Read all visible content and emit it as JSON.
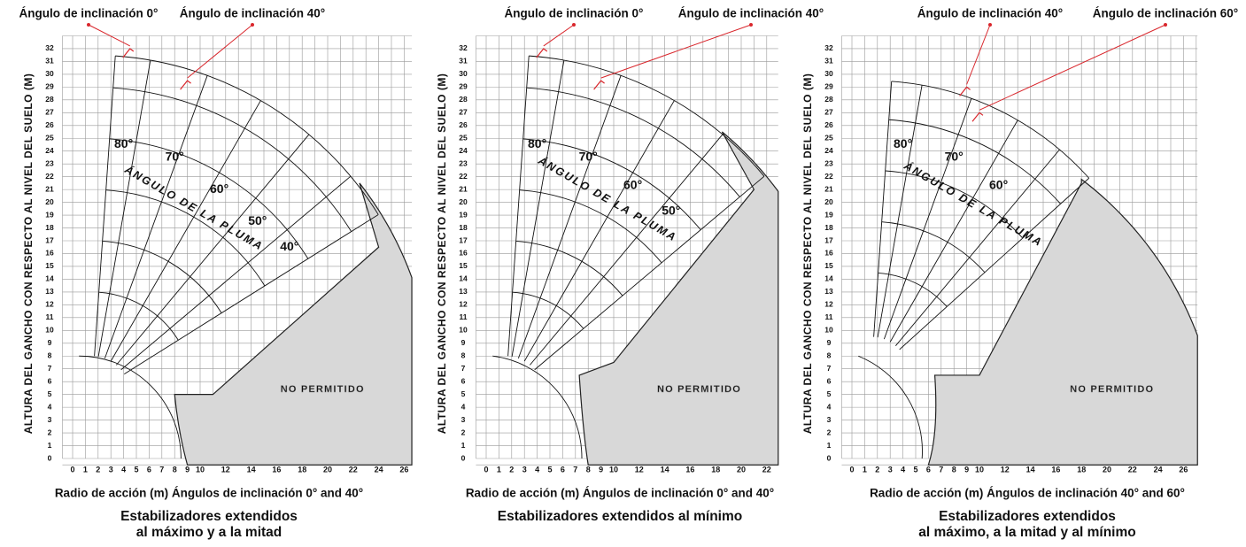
{
  "panels": [
    {
      "top_labels": [
        "Ángulo de inclinación 0°",
        "Ángulo de inclinación 40°"
      ],
      "y_axis_title": "ALTURA DEL GANCHO CON RESPECTO AL NIVEL DEL SUELO (M)",
      "y_ticks": [
        0,
        1,
        2,
        3,
        4,
        5,
        6,
        7,
        8,
        9,
        10,
        11,
        12,
        13,
        14,
        15,
        16,
        17,
        18,
        19,
        20,
        21,
        22,
        23,
        24,
        25,
        26,
        27,
        28,
        29,
        30,
        31,
        32
      ],
      "x_ticks": [
        0,
        1,
        2,
        3,
        4,
        5,
        6,
        7,
        8,
        9,
        10,
        12,
        14,
        16,
        18,
        20,
        22,
        24,
        26
      ],
      "boom_angle_labels": [
        "80°",
        "70°",
        "60°",
        "50°",
        "40°"
      ],
      "boom_angle_title": "ÁNGULO DE LA PLUMA",
      "forbidden_label": "NO PERMITIDO",
      "x_axis_title": "Radio de acción (m) Ángulos de inclinación 0° and 40°",
      "caption": [
        "Estabilizadores extendidos",
        "al máximo y a la mitad"
      ]
    },
    {
      "top_labels": [
        "Ángulo de inclinación 0°",
        "Ángulo de inclinación 40°"
      ],
      "y_axis_title": "ALTURA DEL GANCHO CON RESPECTO AL NIVEL DEL SUELO (M)",
      "y_ticks": [
        0,
        1,
        2,
        3,
        4,
        5,
        6,
        7,
        8,
        9,
        10,
        11,
        12,
        13,
        14,
        15,
        16,
        17,
        18,
        19,
        20,
        21,
        22,
        23,
        24,
        25,
        26,
        27,
        28,
        29,
        30,
        31,
        32
      ],
      "x_ticks": [
        0,
        1,
        2,
        3,
        4,
        5,
        6,
        7,
        8,
        9,
        10,
        12,
        14,
        16,
        18,
        20,
        22
      ],
      "boom_angle_labels": [
        "80°",
        "70°",
        "60°",
        "50°"
      ],
      "boom_angle_title": "ÁNGULO DE LA PLUMA",
      "forbidden_label": "NO PERMITIDO",
      "x_axis_title": "Radio de acción (m) Ángulos de inclinación 0° and 40°",
      "caption": [
        "Estabilizadores extendidos al mínimo"
      ]
    },
    {
      "top_labels": [
        "Ángulo de inclinación 40°",
        "Ángulo de inclinación 60°"
      ],
      "y_axis_title": "ALTURA DEL GANCHO CON RESPECTO AL NIVEL DEL SUELO (M)",
      "y_ticks": [
        0,
        1,
        2,
        3,
        4,
        5,
        6,
        7,
        8,
        9,
        10,
        11,
        12,
        13,
        14,
        15,
        16,
        17,
        18,
        19,
        20,
        21,
        22,
        23,
        24,
        25,
        26,
        27,
        28,
        29,
        30,
        31,
        32
      ],
      "x_ticks": [
        0,
        1,
        2,
        3,
        4,
        5,
        6,
        7,
        8,
        9,
        10,
        12,
        14,
        16,
        18,
        20,
        22,
        24,
        26
      ],
      "boom_angle_labels": [
        "80°",
        "70°",
        "60°"
      ],
      "boom_angle_title": "ÁNGULO DE LA PLUMA",
      "forbidden_label": "NO PERMITIDO",
      "x_axis_title": "Radio de acción (m) Ángulos de inclinación 40° and 60°",
      "caption": [
        "Estabilizadores extendidos",
        "al máximo, a la mitad y al mínimo"
      ]
    }
  ]
}
